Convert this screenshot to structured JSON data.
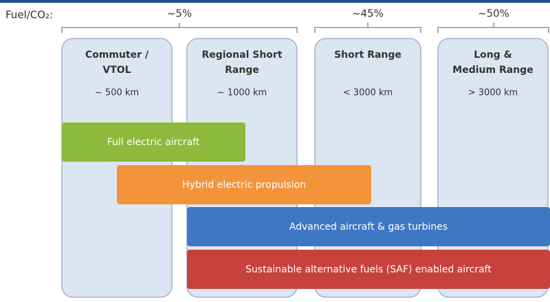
{
  "header": {
    "label": "Fuel/CO₂:"
  },
  "shares": [
    {
      "label": "~5%"
    },
    {
      "label": "~45%"
    },
    {
      "label": "~50%"
    }
  ],
  "columns": [
    {
      "title": [
        "Commuter /",
        "VTOL"
      ],
      "range": "~ 500 km"
    },
    {
      "title": [
        "Regional Short",
        "Range"
      ],
      "range": "~ 1000 km"
    },
    {
      "title": [
        "Short Range"
      ],
      "range": "< 3000 km"
    },
    {
      "title": [
        "Long &",
        "Medium Range"
      ],
      "range": "> 3000 km"
    }
  ],
  "technologies": [
    {
      "label": "Full electric aircraft"
    },
    {
      "label": "Hybrid electric propulsion"
    },
    {
      "label": "Advanced aircraft & gas turbines"
    },
    {
      "label": "Sustainable alternative fuels (SAF) enabled aircraft"
    }
  ]
}
